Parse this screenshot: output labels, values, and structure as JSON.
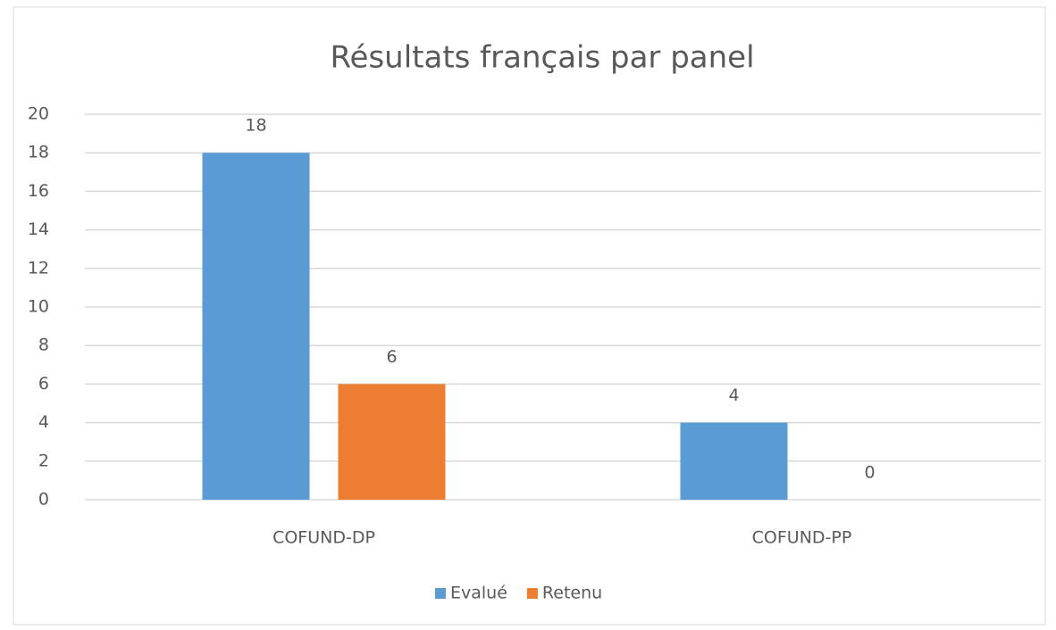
{
  "chart_data": {
    "type": "bar",
    "title": "Résultats français par panel",
    "categories": [
      "COFUND-DP",
      "COFUND-PP"
    ],
    "series": [
      {
        "name": "Evalué",
        "color": "#5b9bd5",
        "values": [
          18,
          4
        ]
      },
      {
        "name": "Retenu",
        "color": "#ed7d31",
        "values": [
          6,
          0
        ]
      }
    ],
    "ylim": [
      0,
      20
    ],
    "yticks": [
      0,
      2,
      4,
      6,
      8,
      10,
      12,
      14,
      16,
      18,
      20
    ],
    "grid": true,
    "legend": "bottom"
  }
}
